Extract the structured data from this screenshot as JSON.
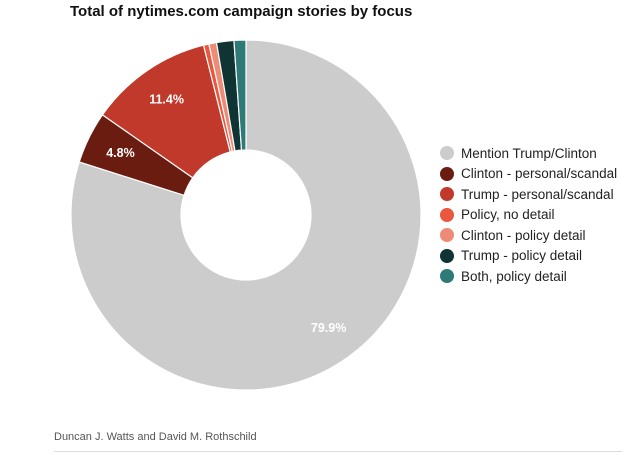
{
  "chart_data": {
    "type": "pie",
    "donut": true,
    "title": "Total of nytimes.com campaign stories by focus",
    "slices": [
      {
        "label": "Mention Trump/Clinton",
        "value": 79.9,
        "display": "79.9%",
        "color": "#cccccc",
        "label_color": "#ffffff"
      },
      {
        "label": "Clinton - personal/scandal",
        "value": 4.8,
        "display": "4.8%",
        "color": "#6b1c11",
        "label_color": "#ffffff"
      },
      {
        "label": "Trump - personal/scandal",
        "value": 11.4,
        "display": "11.4%",
        "color": "#c0392b",
        "label_color": "#ffffff"
      },
      {
        "label": "Policy, no detail",
        "value": 0.5,
        "display": "",
        "color": "#e8573e",
        "label_color": "#ffffff"
      },
      {
        "label": "Clinton - policy detail",
        "value": 0.7,
        "display": "",
        "color": "#ee8b77",
        "label_color": "#ffffff"
      },
      {
        "label": "Trump - policy detail",
        "value": 1.6,
        "display": "",
        "color": "#0f3433",
        "label_color": "#ffffff"
      },
      {
        "label": "Both, policy detail",
        "value": 1.1,
        "display": "",
        "color": "#2e7a77",
        "label_color": "#ffffff"
      }
    ],
    "legend_position": "right",
    "source": "Duncan J. Watts and David M. Rothschild"
  }
}
